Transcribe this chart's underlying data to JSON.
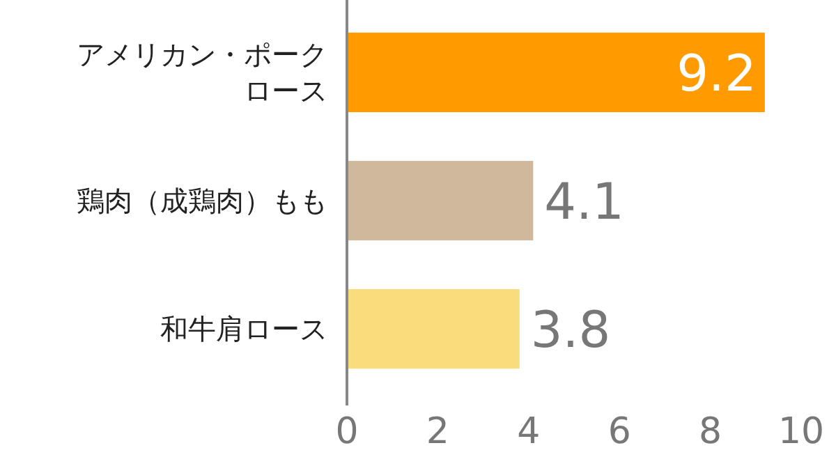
{
  "chart_data": {
    "type": "bar",
    "orientation": "horizontal",
    "categories": [
      "アメリカン・ポークロース",
      "鶏肉（成鶏肉）もも",
      "和牛肩ロース"
    ],
    "values": [
      9.2,
      4.1,
      3.8
    ],
    "colors": [
      "#ff9b00",
      "#d0b89c",
      "#f9dc7c"
    ],
    "xlim": [
      0,
      10
    ],
    "xticks": [
      0,
      2,
      4,
      6,
      8,
      10
    ],
    "data_labels": true,
    "grid": false
  }
}
